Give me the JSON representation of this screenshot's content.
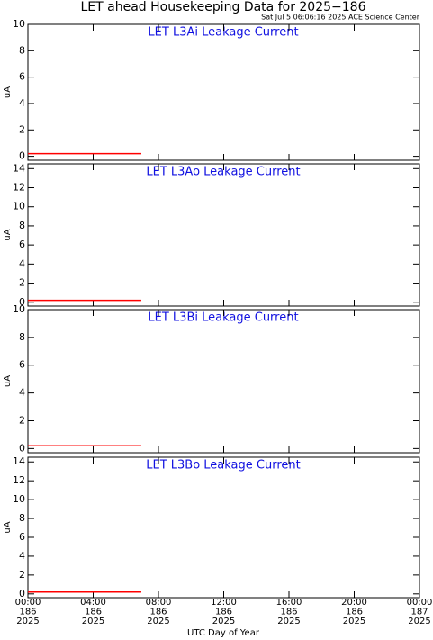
{
  "title": "LET ahead Housekeeping Data for 2025−186",
  "subtitle": "Sat Jul  5 06:06:16 2025 ACE Science Center",
  "chart_data": [
    {
      "type": "line",
      "title": "LET L3Ai Leakage Current",
      "ylabel": "uA",
      "x": [
        0,
        1,
        2,
        3,
        4,
        5,
        6,
        6.95
      ],
      "xlim": [
        0,
        24
      ],
      "series": [
        {
          "color": "#ff0000",
          "values": [
            0.2,
            0.2,
            0.2,
            0.2,
            0.2,
            0.2,
            0.2,
            0.2
          ]
        }
      ],
      "ylim": [
        -0.3,
        10
      ],
      "yticks": [
        0,
        2,
        4,
        6,
        8,
        10
      ]
    },
    {
      "type": "line",
      "title": "LET L3Ao Leakage Current",
      "ylabel": "uA",
      "x": [
        0,
        1,
        2,
        3,
        4,
        5,
        6,
        6.95
      ],
      "xlim": [
        0,
        24
      ],
      "series": [
        {
          "color": "#ff0000",
          "values": [
            0.2,
            0.2,
            0.2,
            0.2,
            0.2,
            0.2,
            0.2,
            0.2
          ]
        }
      ],
      "ylim": [
        -0.4,
        14.5
      ],
      "yticks": [
        0,
        2,
        4,
        6,
        8,
        10,
        12,
        14
      ]
    },
    {
      "type": "line",
      "title": "LET L3Bi Leakage Current",
      "ylabel": "uA",
      "x": [
        0,
        1,
        2,
        3,
        4,
        5,
        6,
        6.95
      ],
      "xlim": [
        0,
        24
      ],
      "series": [
        {
          "color": "#ff0000",
          "values": [
            0.2,
            0.2,
            0.2,
            0.2,
            0.2,
            0.2,
            0.2,
            0.2
          ]
        }
      ],
      "ylim": [
        -0.3,
        10
      ],
      "yticks": [
        0,
        2,
        4,
        6,
        8,
        10
      ]
    },
    {
      "type": "line",
      "title": "LET L3Bo Leakage Current",
      "ylabel": "uA",
      "x": [
        0,
        1,
        2,
        3,
        4,
        5,
        6,
        6.95
      ],
      "xlim": [
        0,
        24
      ],
      "series": [
        {
          "color": "#ff0000",
          "values": [
            0.2,
            0.2,
            0.2,
            0.2,
            0.2,
            0.2,
            0.2,
            0.2
          ]
        }
      ],
      "ylim": [
        -0.4,
        14.5
      ],
      "yticks": [
        0,
        2,
        4,
        6,
        8,
        10,
        12,
        14
      ],
      "xlabel": "UTC Day of Year",
      "xticks": [
        {
          "value": 0,
          "label": [
            "00:00",
            "186",
            "2025"
          ]
        },
        {
          "value": 4,
          "label": [
            "04:00",
            "186",
            "2025"
          ]
        },
        {
          "value": 8,
          "label": [
            "08:00",
            "186",
            "2025"
          ]
        },
        {
          "value": 12,
          "label": [
            "12:00",
            "186",
            "2025"
          ]
        },
        {
          "value": 16,
          "label": [
            "16:00",
            "186",
            "2025"
          ]
        },
        {
          "value": 20,
          "label": [
            "20:00",
            "186",
            "2025"
          ]
        },
        {
          "value": 24,
          "label": [
            "00:00",
            "187",
            "2025"
          ]
        }
      ]
    }
  ]
}
